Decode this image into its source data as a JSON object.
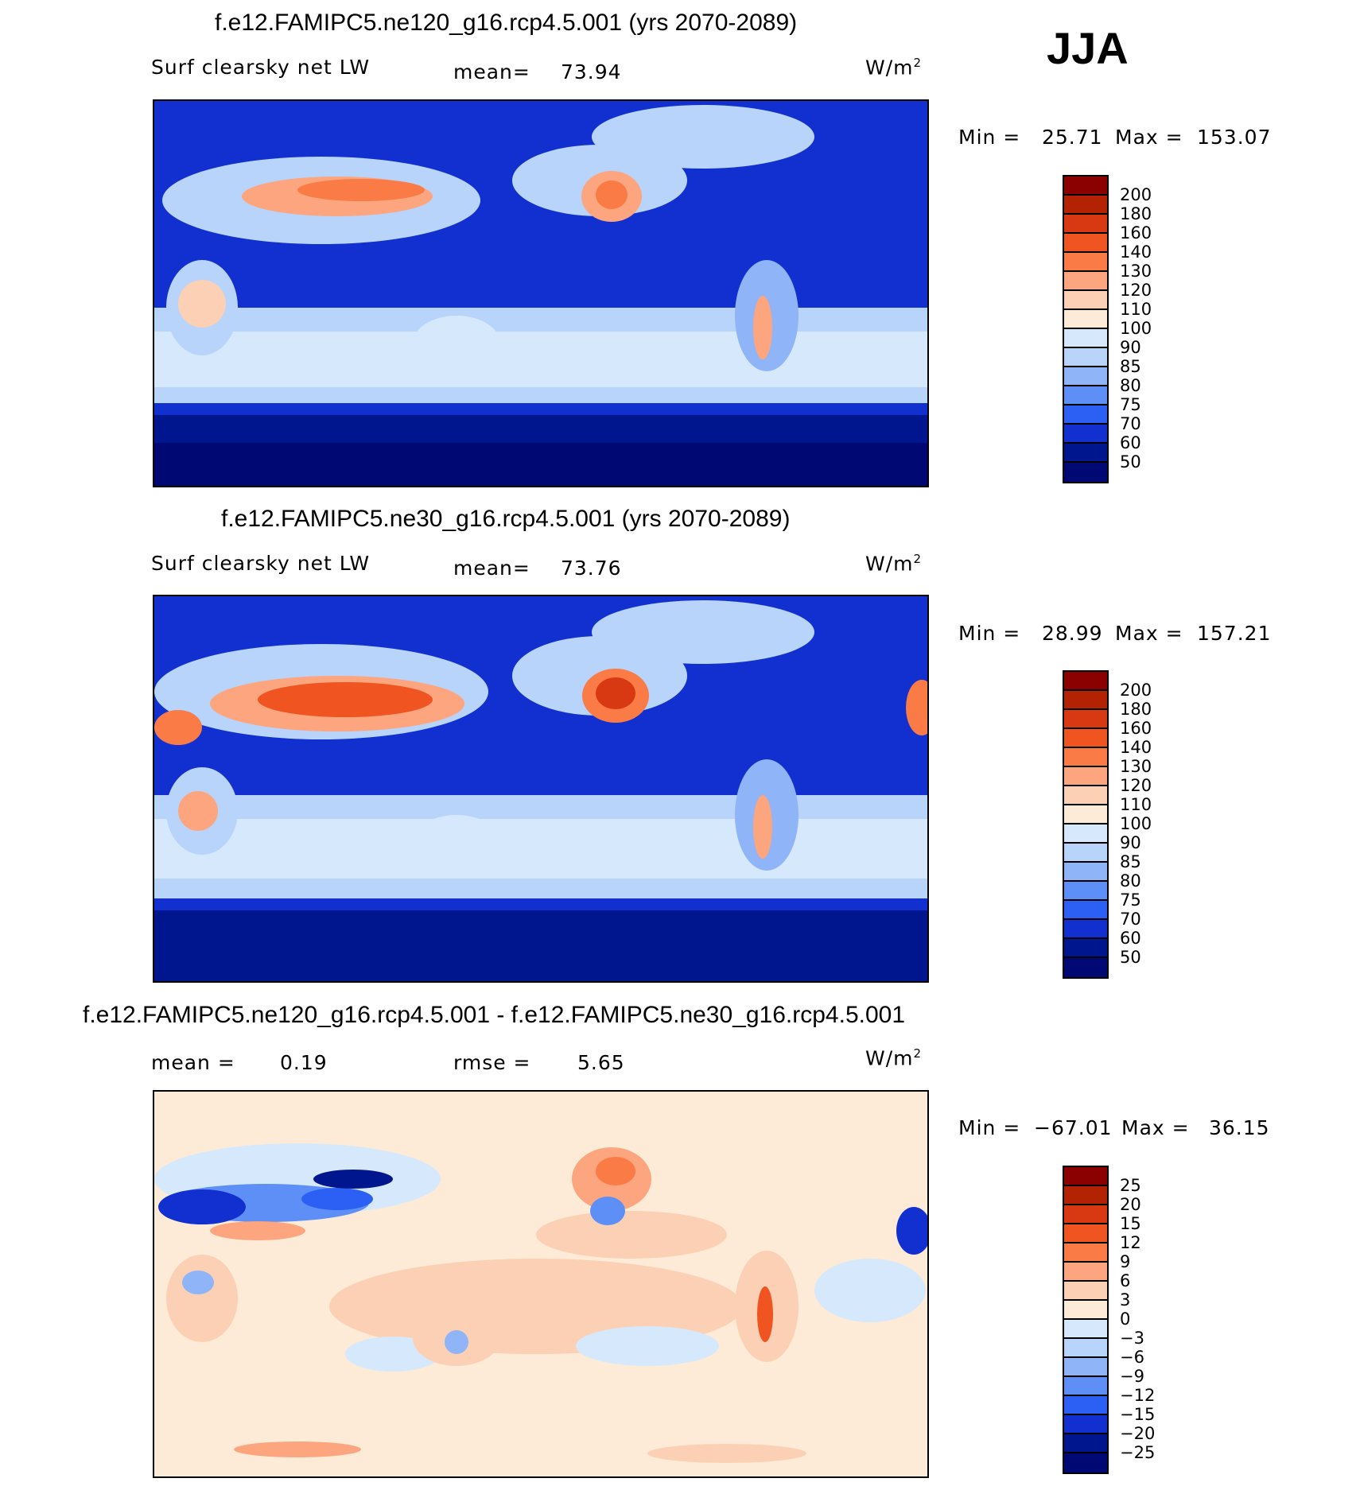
{
  "season": "JJA",
  "panels": [
    {
      "title": "f.e12.FAMIPC5.ne120_g16.rcp4.5.001 (yrs 2070-2089)",
      "variable": "Surf clearsky net LW",
      "mean_label": "mean=",
      "mean_value": "73.94",
      "units": "W/m",
      "units_sup": "2",
      "min_label": "Min =",
      "min_value": "25.71",
      "max_label": "Max =",
      "max_value": "153.07",
      "legend": [
        "200",
        "180",
        "160",
        "140",
        "130",
        "120",
        "110",
        "100",
        "90",
        "85",
        "80",
        "75",
        "70",
        "60",
        "50"
      ]
    },
    {
      "title": "f.e12.FAMIPC5.ne30_g16.rcp4.5.001 (yrs 2070-2089)",
      "variable": "Surf clearsky net LW",
      "mean_label": "mean=",
      "mean_value": "73.76",
      "units": "W/m",
      "units_sup": "2",
      "min_label": "Min =",
      "min_value": "28.99",
      "max_label": "Max =",
      "max_value": "157.21",
      "legend": [
        "200",
        "180",
        "160",
        "140",
        "130",
        "120",
        "110",
        "100",
        "90",
        "85",
        "80",
        "75",
        "70",
        "60",
        "50"
      ]
    },
    {
      "title": "f.e12.FAMIPC5.ne120_g16.rcp4.5.001 - f.e12.FAMIPC5.ne30_g16.rcp4.5.001",
      "mean_label": "mean =",
      "mean_value": "0.19",
      "rmse_label": "rmse =",
      "rmse_value": "5.65",
      "units": "W/m",
      "units_sup": "2",
      "min_label": "Min =",
      "min_value": "−67.01",
      "max_label": "Max =",
      "max_value": "36.15",
      "legend": [
        "25",
        "20",
        "15",
        "12",
        "9",
        "6",
        "3",
        "0",
        "−3",
        "−6",
        "−9",
        "−12",
        "−15",
        "−20",
        "−25"
      ]
    }
  ],
  "colors": {
    "abs_scale": [
      "#8b0000",
      "#b22203",
      "#d83812",
      "#f05420",
      "#fa7b45",
      "#fca57f",
      "#fcd0b4",
      "#fdebd8",
      "#d6e8fb",
      "#b8d4fa",
      "#8fb4f7",
      "#5d8ff7",
      "#2c60f5",
      "#1230d0",
      "#00168f",
      "#000873"
    ],
    "diff_scale": [
      "#8b0000",
      "#b22203",
      "#d83812",
      "#f05420",
      "#fa7b45",
      "#fca57f",
      "#fcd0b4",
      "#fdebd8",
      "#d6e8fb",
      "#b8d4fa",
      "#8fb4f7",
      "#5d8ff7",
      "#2c60f5",
      "#1230d0",
      "#00168f",
      "#000873"
    ]
  }
}
